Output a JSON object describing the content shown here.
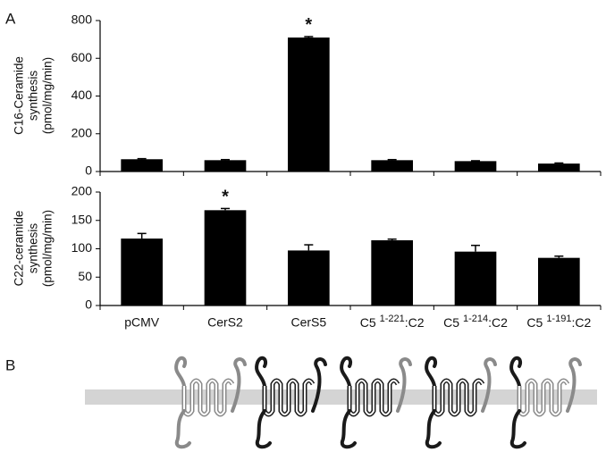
{
  "panel_labels": [
    "A",
    "B"
  ],
  "chart_data": [
    {
      "type": "bar",
      "y_title": [
        "C16-Ceramide",
        "synthesis",
        "(pmol/mg/min)"
      ],
      "values": [
        65,
        60,
        710,
        60,
        55,
        42
      ],
      "errors": [
        3,
        3,
        5,
        3,
        2,
        3
      ],
      "significance": [
        null,
        null,
        "*",
        null,
        null,
        null
      ],
      "color": "#000000",
      "ylim": [
        0,
        800
      ],
      "yticks": [
        0,
        200,
        400,
        600,
        800
      ]
    },
    {
      "type": "bar",
      "y_title": [
        "C22-ceramide",
        "synthesis",
        "(pmol/mg/min)"
      ],
      "categories": [
        "pCMV",
        "CerS2",
        "CerS5",
        {
          "text": "C5",
          "sup": "1-221",
          "after": ":C2"
        },
        {
          "text": "C5",
          "sup": "1-214",
          "after": ":C2"
        },
        {
          "text": "C5",
          "sup": "1-191",
          "after": ":C2"
        }
      ],
      "values": [
        118,
        168,
        97,
        115,
        95,
        84
      ],
      "errors": [
        9,
        3,
        10,
        2,
        11,
        3
      ],
      "significance": [
        null,
        "*",
        null,
        null,
        null,
        null
      ],
      "color": "#000000",
      "ylim": [
        0,
        200
      ],
      "yticks": [
        0,
        50,
        100,
        150,
        200
      ]
    }
  ]
}
